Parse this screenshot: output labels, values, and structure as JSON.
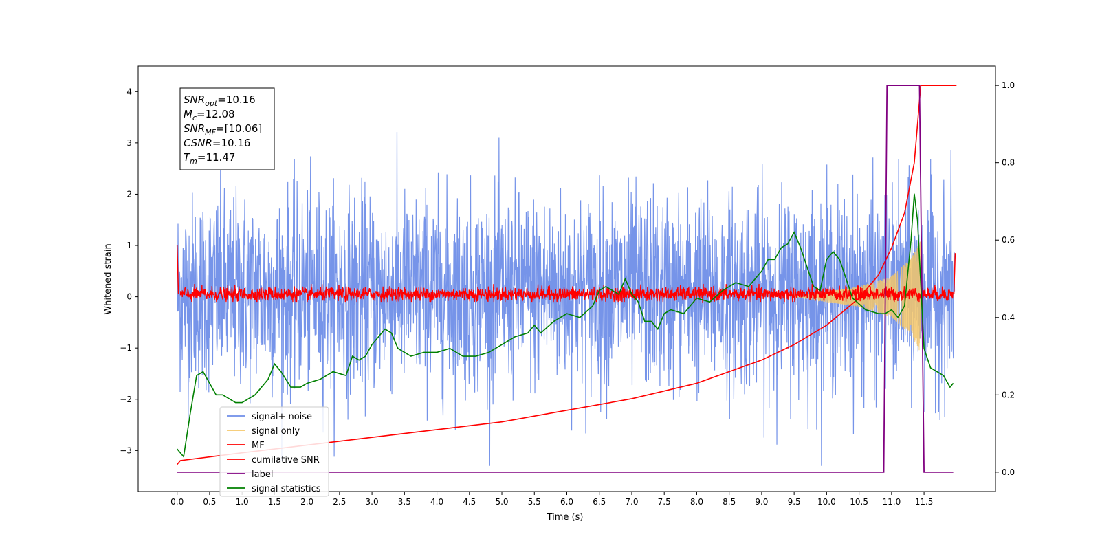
{
  "chart_data": {
    "type": "line",
    "xlabel": "Time (s)",
    "ylabel": "Whitened strain",
    "xlim": [
      -0.6,
      12.6
    ],
    "ylim": [
      -3.8,
      4.5
    ],
    "y2lim": [
      -0.05,
      1.05
    ],
    "x_ticks": [
      "0.0",
      "0.5",
      "1.0",
      "1.5",
      "2.0",
      "2.5",
      "3.0",
      "3.5",
      "4.0",
      "4.5",
      "5.0",
      "5.5",
      "6.0",
      "6.5",
      "7.0",
      "7.5",
      "8.0",
      "8.5",
      "9.0",
      "9.5",
      "10.0",
      "10.5",
      "11.0",
      "11.5"
    ],
    "y_ticks": [
      "−3",
      "−2",
      "−1",
      "0",
      "1",
      "2",
      "3",
      "4"
    ],
    "y2_ticks": [
      "0.0",
      "0.2",
      "0.4",
      "0.6",
      "0.8",
      "1.0"
    ],
    "grid": false,
    "legend_position": "lower-left",
    "colors": {
      "signal_noise": "#6f8ee8",
      "signal_only": "#f5c76a",
      "mf": "#ff0000",
      "cumulative_snr": "#ff0000",
      "label": "#800080",
      "signal_statistics": "#008000"
    },
    "series": [
      {
        "name": "signal+ noise",
        "axis": "left",
        "style": "noise band",
        "amplitude_range": [
          -3.3,
          3.7
        ]
      },
      {
        "name": "signal only",
        "axis": "left",
        "style": "chirp",
        "x": [
          10.0,
          10.5,
          11.0,
          11.3,
          11.45
        ],
        "envelope": [
          0.1,
          0.2,
          0.4,
          0.75,
          1.1
        ]
      },
      {
        "name": "MF",
        "axis": "left",
        "style": "noise band",
        "amplitude_range": [
          -0.1,
          0.25
        ]
      },
      {
        "name": "cumilative SNR",
        "axis": "right",
        "x": [
          0.0,
          0.05,
          1.0,
          2.0,
          3.0,
          4.0,
          5.0,
          6.0,
          7.0,
          8.0,
          8.5,
          9.0,
          9.5,
          10.0,
          10.5,
          10.8,
          11.0,
          11.2,
          11.35,
          11.45,
          12.0
        ],
        "values": [
          0.02,
          0.03,
          0.05,
          0.07,
          0.09,
          0.11,
          0.13,
          0.16,
          0.19,
          0.23,
          0.26,
          0.29,
          0.33,
          0.38,
          0.45,
          0.51,
          0.58,
          0.67,
          0.8,
          1.0,
          1.0
        ]
      },
      {
        "name": "label",
        "axis": "right",
        "x": [
          0.0,
          10.88,
          10.93,
          11.43,
          11.5,
          11.95
        ],
        "values": [
          0.0,
          0.0,
          1.0,
          1.0,
          0.0,
          0.0
        ]
      },
      {
        "name": "signal statistics",
        "axis": "right",
        "x": [
          0.0,
          0.1,
          0.2,
          0.3,
          0.4,
          0.5,
          0.6,
          0.7,
          0.8,
          0.9,
          1.0,
          1.2,
          1.4,
          1.5,
          1.6,
          1.75,
          1.9,
          2.0,
          2.2,
          2.4,
          2.6,
          2.7,
          2.8,
          2.9,
          3.0,
          3.2,
          3.3,
          3.4,
          3.5,
          3.6,
          3.8,
          4.0,
          4.2,
          4.4,
          4.6,
          4.8,
          5.0,
          5.2,
          5.4,
          5.5,
          5.6,
          5.8,
          6.0,
          6.2,
          6.4,
          6.5,
          6.6,
          6.8,
          6.9,
          7.0,
          7.1,
          7.2,
          7.3,
          7.4,
          7.5,
          7.6,
          7.8,
          8.0,
          8.2,
          8.4,
          8.5,
          8.6,
          8.8,
          9.0,
          9.1,
          9.2,
          9.3,
          9.4,
          9.5,
          9.6,
          9.7,
          9.8,
          9.9,
          10.0,
          10.1,
          10.2,
          10.3,
          10.4,
          10.6,
          10.8,
          10.9,
          11.0,
          11.1,
          11.2,
          11.3,
          11.35,
          11.4,
          11.5,
          11.6,
          11.7,
          11.8,
          11.9,
          11.95
        ],
        "values": [
          0.06,
          0.04,
          0.15,
          0.25,
          0.26,
          0.23,
          0.2,
          0.2,
          0.19,
          0.18,
          0.18,
          0.2,
          0.24,
          0.28,
          0.26,
          0.22,
          0.22,
          0.23,
          0.24,
          0.26,
          0.25,
          0.3,
          0.29,
          0.3,
          0.33,
          0.37,
          0.36,
          0.32,
          0.31,
          0.3,
          0.31,
          0.31,
          0.32,
          0.3,
          0.3,
          0.31,
          0.33,
          0.35,
          0.36,
          0.38,
          0.36,
          0.39,
          0.41,
          0.4,
          0.43,
          0.47,
          0.48,
          0.46,
          0.5,
          0.46,
          0.44,
          0.39,
          0.39,
          0.37,
          0.41,
          0.42,
          0.41,
          0.45,
          0.44,
          0.47,
          0.48,
          0.49,
          0.48,
          0.52,
          0.55,
          0.55,
          0.58,
          0.59,
          0.62,
          0.58,
          0.53,
          0.48,
          0.47,
          0.55,
          0.57,
          0.55,
          0.5,
          0.45,
          0.42,
          0.41,
          0.41,
          0.42,
          0.4,
          0.43,
          0.6,
          0.72,
          0.65,
          0.32,
          0.27,
          0.26,
          0.25,
          0.22,
          0.23
        ]
      }
    ],
    "annotation_lines": [
      {
        "key": "SNR",
        "sub": "opt",
        "text": "=10.16"
      },
      {
        "key": "M",
        "sub": "c",
        "text": "=12.08"
      },
      {
        "key": "SNR",
        "sub": "MF",
        "text": "=[10.06]"
      },
      {
        "key": "CSNR",
        "sub": "",
        "text": "=10.16"
      },
      {
        "key": "T",
        "sub": "m",
        "text": "=11.47"
      }
    ]
  }
}
